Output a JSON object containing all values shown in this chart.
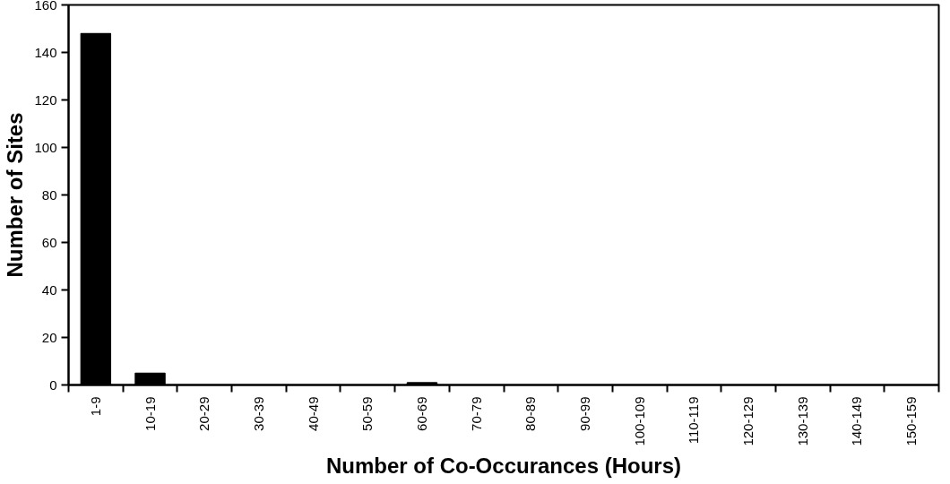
{
  "chart_data": {
    "type": "bar",
    "xlabel": "Number of Co-Occurances (Hours)",
    "ylabel": "Number of Sites",
    "categories": [
      "1-9",
      "10-19",
      "20-29",
      "30-39",
      "40-49",
      "50-59",
      "60-69",
      "70-79",
      "80-89",
      "90-99",
      "100-109",
      "110-119",
      "120-129",
      "130-139",
      "140-149",
      "150-159"
    ],
    "values": [
      148,
      5,
      0,
      0,
      0,
      0,
      1,
      0,
      0,
      0,
      0,
      0,
      0,
      0,
      0,
      0
    ],
    "color": "#000000",
    "ylim": [
      0,
      160
    ],
    "yticks": [
      0,
      20,
      40,
      60,
      80,
      100,
      120,
      140,
      160
    ],
    "grid": false
  }
}
